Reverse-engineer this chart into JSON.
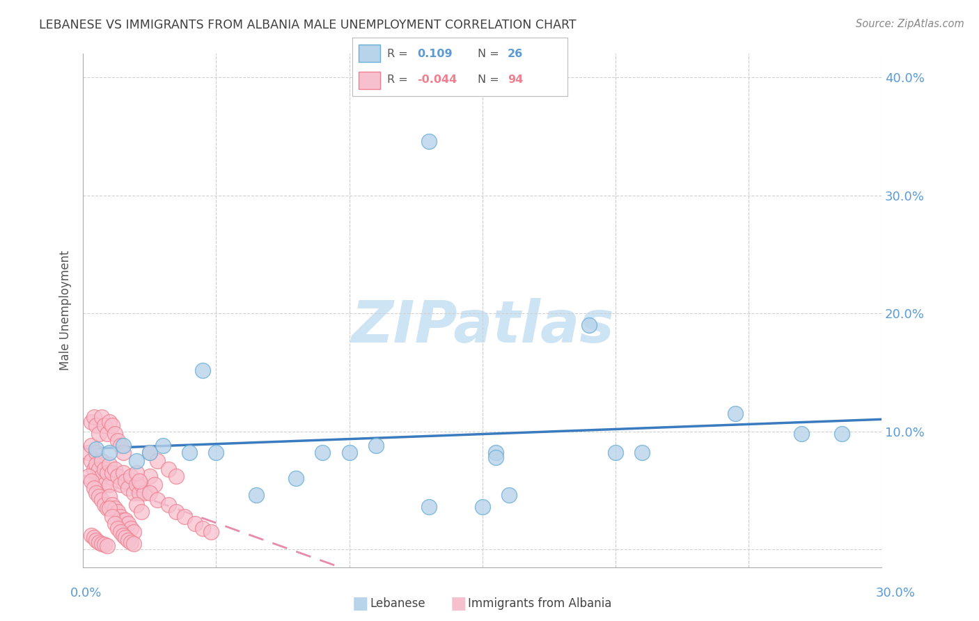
{
  "title": "LEBANESE VS IMMIGRANTS FROM ALBANIA MALE UNEMPLOYMENT CORRELATION CHART",
  "source": "Source: ZipAtlas.com",
  "ylabel": "Male Unemployment",
  "legend_label1": "Lebanese",
  "legend_label2": "Immigrants from Albania",
  "r1_label": "0.109",
  "n1_label": "26",
  "r2_label": "-0.044",
  "n2_label": "94",
  "color_blue_fill": "#b8d4ea",
  "color_blue_edge": "#6aaed6",
  "color_pink_fill": "#f7c0ce",
  "color_pink_edge": "#f08090",
  "color_line_blue": "#3a7abf",
  "color_line_pink": "#e88aaa",
  "blue_x": [
    0.005,
    0.01,
    0.015,
    0.02,
    0.025,
    0.03,
    0.04,
    0.05,
    0.1,
    0.11,
    0.13,
    0.15,
    0.16,
    0.155,
    0.19,
    0.2,
    0.245,
    0.27,
    0.045,
    0.08,
    0.09,
    0.155,
    0.21,
    0.285,
    0.065,
    0.13
  ],
  "blue_y": [
    0.085,
    0.082,
    0.088,
    0.075,
    0.082,
    0.088,
    0.082,
    0.082,
    0.082,
    0.088,
    0.036,
    0.036,
    0.046,
    0.082,
    0.19,
    0.082,
    0.115,
    0.098,
    0.152,
    0.06,
    0.082,
    0.078,
    0.082,
    0.098,
    0.046,
    0.346
  ],
  "pink_x_main": [
    0.002,
    0.003,
    0.003,
    0.004,
    0.005,
    0.005,
    0.006,
    0.006,
    0.007,
    0.007,
    0.008,
    0.008,
    0.009,
    0.01,
    0.01,
    0.011,
    0.012,
    0.013,
    0.014,
    0.015,
    0.016,
    0.017,
    0.018,
    0.019,
    0.02,
    0.021,
    0.022,
    0.023,
    0.025,
    0.027,
    0.002,
    0.003,
    0.004,
    0.005,
    0.006,
    0.007,
    0.008,
    0.009,
    0.01,
    0.011,
    0.012,
    0.013,
    0.014,
    0.015,
    0.016,
    0.017,
    0.018,
    0.019,
    0.02,
    0.022,
    0.003,
    0.004,
    0.005,
    0.006,
    0.007,
    0.008,
    0.009,
    0.01,
    0.011,
    0.012,
    0.013,
    0.014,
    0.015,
    0.003,
    0.004,
    0.005,
    0.006,
    0.007,
    0.008,
    0.009,
    0.01,
    0.011,
    0.012,
    0.013,
    0.014,
    0.015,
    0.016,
    0.017,
    0.018,
    0.019,
    0.02,
    0.021,
    0.025,
    0.028,
    0.032,
    0.035,
    0.038,
    0.042,
    0.045,
    0.048,
    0.025,
    0.028,
    0.032,
    0.035
  ],
  "pink_y_main": [
    0.082,
    0.088,
    0.075,
    0.068,
    0.082,
    0.072,
    0.068,
    0.055,
    0.075,
    0.062,
    0.068,
    0.055,
    0.065,
    0.072,
    0.055,
    0.065,
    0.068,
    0.062,
    0.055,
    0.065,
    0.058,
    0.052,
    0.062,
    0.048,
    0.055,
    0.048,
    0.055,
    0.048,
    0.062,
    0.055,
    0.062,
    0.058,
    0.052,
    0.048,
    0.045,
    0.042,
    0.038,
    0.035,
    0.045,
    0.038,
    0.035,
    0.032,
    0.028,
    0.025,
    0.025,
    0.022,
    0.018,
    0.015,
    0.038,
    0.032,
    0.108,
    0.112,
    0.105,
    0.098,
    0.112,
    0.105,
    0.098,
    0.108,
    0.105,
    0.098,
    0.092,
    0.088,
    0.082,
    0.012,
    0.01,
    0.008,
    0.006,
    0.005,
    0.004,
    0.003,
    0.035,
    0.028,
    0.022,
    0.018,
    0.015,
    0.012,
    0.01,
    0.008,
    0.006,
    0.005,
    0.065,
    0.058,
    0.048,
    0.042,
    0.038,
    0.032,
    0.028,
    0.022,
    0.018,
    0.015,
    0.082,
    0.075,
    0.068,
    0.062
  ],
  "xlim": [
    0.0,
    0.3
  ],
  "ylim": [
    -0.015,
    0.42
  ],
  "ytick_positions": [
    0.0,
    0.1,
    0.2,
    0.3,
    0.4
  ],
  "ytick_labels": [
    "",
    "10.0%",
    "20.0%",
    "30.0%",
    "40.0%"
  ],
  "xtick_positions": [
    0.0,
    0.05,
    0.1,
    0.15,
    0.2,
    0.25,
    0.3
  ],
  "watermark": "ZIPatlas",
  "watermark_color": "#cde4f5",
  "background_color": "#ffffff",
  "grid_color": "#d0d0d0",
  "title_color": "#404040",
  "source_color": "#888888",
  "ylabel_color": "#555555",
  "tick_color": "#5b9bd5"
}
